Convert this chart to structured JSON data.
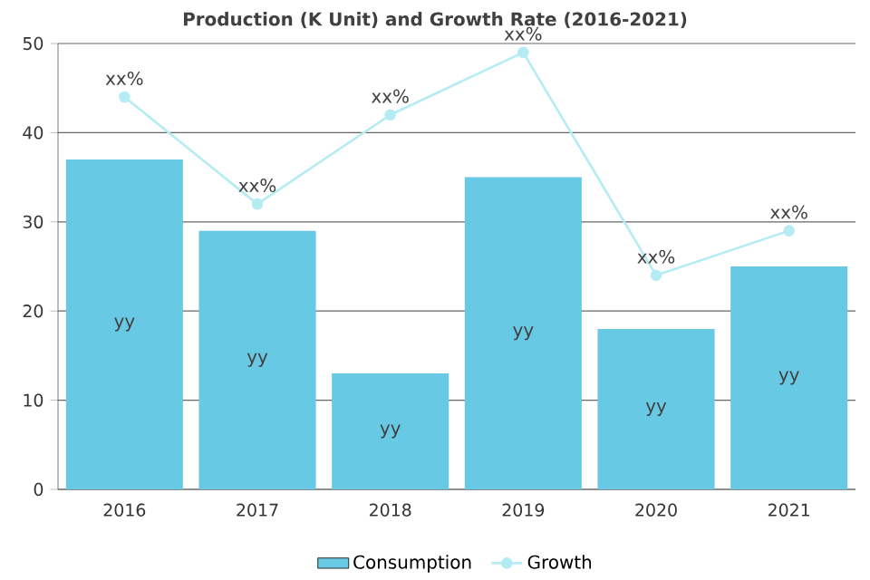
{
  "chart_data": {
    "type": "bar",
    "title": "Production (K Unit) and Growth Rate (2016-2021)",
    "categories": [
      "2016",
      "2017",
      "2018",
      "2019",
      "2020",
      "2021"
    ],
    "series": [
      {
        "name": "Consumption",
        "color": "#68c9e4",
        "values": [
          37,
          29,
          13,
          35,
          18,
          25
        ],
        "value_labels": [
          "yy",
          "yy",
          "yy",
          "yy",
          "yy",
          "yy"
        ]
      },
      {
        "name": "Growth",
        "type": "line",
        "color": "#b5ecf3",
        "marker": "circle",
        "values": [
          44,
          32,
          42,
          49,
          24,
          29
        ],
        "value_labels": [
          "xx%",
          "xx%",
          "xx%",
          "xx%",
          "xx%",
          "xx%"
        ]
      }
    ],
    "ylim": [
      0,
      50
    ],
    "yticks": [
      0,
      10,
      20,
      30,
      40,
      50
    ],
    "grid": "y",
    "legend": "bottom"
  }
}
